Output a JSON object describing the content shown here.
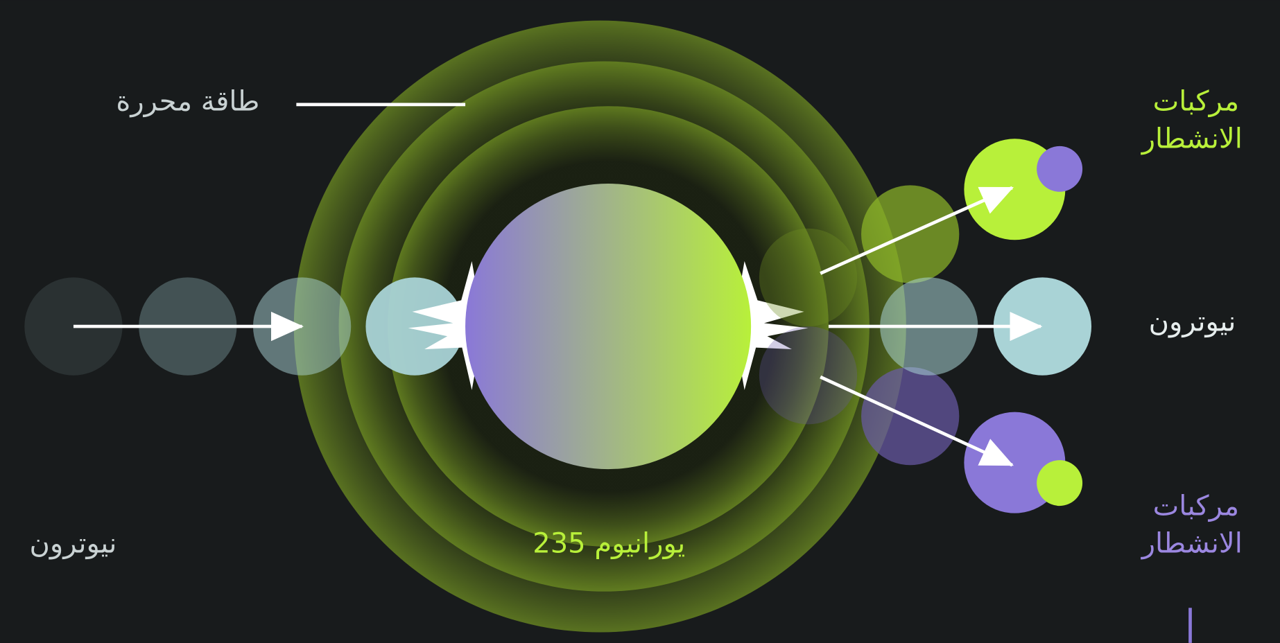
{
  "labels": {
    "released_energy": "طاقة محررة",
    "fission_products_top": [
      "مركبات",
      "الانشطار"
    ],
    "neutron_right": "نيوترون",
    "fission_products_bottom": [
      "مركبات",
      "الانشطار"
    ],
    "neutron_left": "نيوترون",
    "uranium": "يورانيوم 235"
  }
}
